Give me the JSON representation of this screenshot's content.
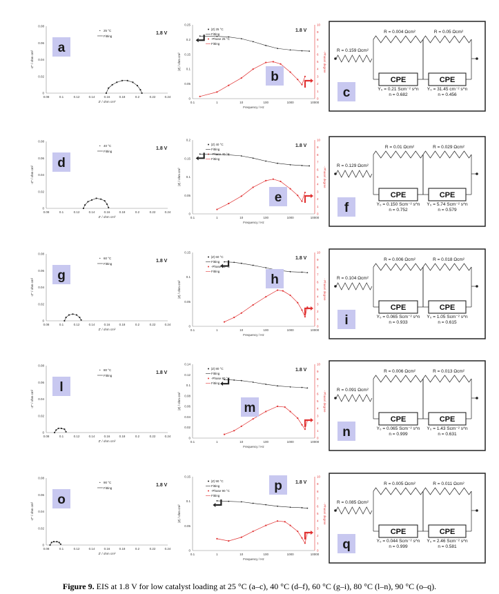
{
  "caption": {
    "label": "Figure 9.",
    "text": "EIS at 1.8 V for low catalyst loading at 25 °C (a–c), 40 °C (d–f), 60 °C (g–i), 80 °C (l–n), 90 °C (o–q)."
  },
  "common": {
    "voltage": "1.8 V",
    "fitting": "Fitting",
    "cpe": "CPE",
    "nyquist_xlabel": "Z' / ohm cm²",
    "nyquist_ylabel": "-Z'' / ohm cm²",
    "bode_xlabel": "Frequency / Hz",
    "bode_ylabel": "|Z| / ohm cm²",
    "bode_y2label": "- Phase/ degree",
    "bode_y2ticks": [
      "0",
      "1",
      "2",
      "3",
      "4",
      "5",
      "6",
      "7",
      "8",
      "9",
      "10"
    ],
    "bode_xticks": [
      "0.1",
      "1",
      "10",
      "100",
      "1000",
      "10000"
    ],
    "nyquist_xticks": [
      "0.08",
      "0.1",
      "0.12",
      "0.14",
      "0.16",
      "0.18",
      "0.2",
      "0.22",
      "0.24"
    ]
  },
  "chart_data": [
    {
      "type": "scatter",
      "role": "nyquist",
      "panel": "a",
      "xlabel": "Z' / ohm cm²",
      "ylabel": "-Z'' / ohm cm²",
      "xlim": [
        0.08,
        0.24
      ],
      "ylim": [
        0,
        0.08
      ],
      "yticks": [
        "0",
        "0.02",
        "0.04",
        "0.06",
        "0.08"
      ],
      "series": [
        {
          "name": "25 °C",
          "points": [
            [
              0.159,
              0
            ],
            [
              0.162,
              0.006
            ],
            [
              0.167,
              0.01
            ],
            [
              0.173,
              0.013
            ],
            [
              0.18,
              0.015
            ],
            [
              0.187,
              0.015
            ],
            [
              0.194,
              0.013
            ],
            [
              0.2,
              0.009
            ],
            [
              0.204,
              0.004
            ],
            [
              0.206,
              0.0
            ]
          ]
        },
        {
          "name": "Fitting",
          "line": true
        }
      ]
    },
    {
      "type": "line",
      "role": "bode",
      "panel": "b",
      "xlabel": "Frequency / Hz",
      "ylabel": "|Z| / ohm cm²",
      "y2label": "- Phase/ degree",
      "xlog": true,
      "xlim": [
        0.1,
        10000
      ],
      "ylim": [
        0,
        0.25
      ],
      "y2lim": [
        0,
        10
      ],
      "yticks": [
        "0",
        "0.05",
        "0.1",
        "0.15",
        "0.2",
        "0.25"
      ],
      "legend": [
        "|Z| 25 °C",
        "Fitting",
        "-Phase 25 °C",
        "Fitting"
      ],
      "magnitude": [
        [
          0.2,
          0.212
        ],
        [
          1,
          0.211
        ],
        [
          3,
          0.209
        ],
        [
          10,
          0.203
        ],
        [
          30,
          0.193
        ],
        [
          100,
          0.18
        ],
        [
          300,
          0.17
        ],
        [
          1000,
          0.165
        ],
        [
          3000,
          0.162
        ],
        [
          6000,
          0.161
        ]
      ],
      "phase": [
        [
          0.2,
          0.3
        ],
        [
          1,
          0.9
        ],
        [
          3,
          1.8
        ],
        [
          10,
          2.8
        ],
        [
          30,
          4.0
        ],
        [
          100,
          4.9
        ],
        [
          200,
          5.0
        ],
        [
          400,
          4.7
        ],
        [
          1000,
          3.6
        ],
        [
          2000,
          2.6
        ],
        [
          3000,
          1.9
        ],
        [
          4000,
          3.0
        ]
      ]
    },
    {
      "type": "table",
      "role": "circuit",
      "panel": "c",
      "R_series": "R = 0.159 Ωcm²",
      "R1": "R = 0.004 Ωcm²",
      "R2": "R = 0.05 Ωcm²",
      "Y1": "Y₀ = 0.21 Scm⁻² s^n",
      "n1": "n = 0.682",
      "Y2": "Y₀ = 31.45 cm⁻² s^n",
      "n2": "n = 0.456"
    },
    {
      "type": "scatter",
      "role": "nyquist",
      "panel": "d",
      "xlabel": "Z' / ohm cm²",
      "ylabel": "-Z'' / ohm cm²",
      "xlim": [
        0.08,
        0.24
      ],
      "ylim": [
        0,
        0.08
      ],
      "yticks": [
        "0",
        "0.02",
        "0.04",
        "0.06",
        "0.08"
      ],
      "series": [
        {
          "name": "40 °C",
          "points": [
            [
              0.129,
              0
            ],
            [
              0.131,
              0.004
            ],
            [
              0.135,
              0.008
            ],
            [
              0.14,
              0.01
            ],
            [
              0.146,
              0.012
            ],
            [
              0.152,
              0.011
            ],
            [
              0.157,
              0.009
            ],
            [
              0.16,
              0.005
            ],
            [
              0.162,
              0.001
            ]
          ]
        },
        {
          "name": "Fitting",
          "line": true
        }
      ]
    },
    {
      "type": "line",
      "role": "bode",
      "panel": "e",
      "xlabel": "Frequency / Hz",
      "ylabel": "|Z| / ohm cm²",
      "y2label": "- Phase/ degree",
      "xlog": true,
      "xlim": [
        0.1,
        10000
      ],
      "ylim": [
        0,
        0.2
      ],
      "y2lim": [
        0,
        10
      ],
      "yticks": [
        "0",
        "0.05",
        "0.1",
        "0.15",
        "0.2"
      ],
      "legend": [
        "|Z| 40 °C",
        "Fitting",
        "-Phase 40 °C",
        "Fitting"
      ],
      "magnitude": [
        [
          0.2,
          0.162
        ],
        [
          1,
          0.161
        ],
        [
          3,
          0.16
        ],
        [
          10,
          0.157
        ],
        [
          30,
          0.151
        ],
        [
          100,
          0.143
        ],
        [
          300,
          0.137
        ],
        [
          1000,
          0.133
        ],
        [
          3000,
          0.131
        ],
        [
          6000,
          0.13
        ]
      ],
      "phase": [
        [
          1,
          0.6
        ],
        [
          3,
          1.4
        ],
        [
          10,
          2.4
        ],
        [
          30,
          3.6
        ],
        [
          100,
          4.5
        ],
        [
          200,
          4.7
        ],
        [
          400,
          4.4
        ],
        [
          1000,
          3.4
        ],
        [
          2000,
          2.5
        ],
        [
          3000,
          1.7
        ],
        [
          4000,
          2.9
        ]
      ]
    },
    {
      "type": "table",
      "role": "circuit",
      "panel": "f",
      "R_series": "R = 0.129 Ωcm²",
      "R1": "R = 0.01 Ωcm²",
      "R2": "R = 0.029 Ωcm²",
      "Y1": "Y₀ = 0.150 Scm⁻² s^n",
      "n1": "n = 0.752",
      "Y2": "Y₀ = 5.74 Scm⁻² s^n",
      "n2": "n = 0.579"
    },
    {
      "type": "scatter",
      "role": "nyquist",
      "panel": "g",
      "xlabel": "Z' / ohm cm²",
      "ylabel": "-Z'' / ohm cm²",
      "xlim": [
        0.08,
        0.24
      ],
      "ylim": [
        0,
        0.08
      ],
      "yticks": [
        "0",
        "0.02",
        "0.04",
        "0.06",
        "0.08"
      ],
      "series": [
        {
          "name": "60 °C",
          "points": [
            [
              0.104,
              0
            ],
            [
              0.106,
              0.004
            ],
            [
              0.11,
              0.007
            ],
            [
              0.115,
              0.008
            ],
            [
              0.12,
              0.007
            ],
            [
              0.124,
              0.004
            ],
            [
              0.126,
              0.001
            ]
          ]
        },
        {
          "name": "Fitting",
          "line": true
        }
      ]
    },
    {
      "type": "line",
      "role": "bode",
      "panel": "h",
      "xlabel": "Frequency / Hz",
      "ylabel": "|Z| / ohm cm²",
      "y2label": "- Phase/ degree",
      "xlog": true,
      "xlim": [
        0.1,
        10000
      ],
      "ylim": [
        0,
        0.15
      ],
      "y2lim": [
        0,
        10
      ],
      "yticks": [
        "0",
        "0.05",
        "0.1",
        "0.15"
      ],
      "legend": [
        "|Z| 60 °C",
        "Fitting",
        "-Phase 60 °C",
        "Fitting"
      ],
      "magnitude": [
        [
          2,
          0.131
        ],
        [
          5,
          0.13
        ],
        [
          10,
          0.128
        ],
        [
          30,
          0.124
        ],
        [
          100,
          0.119
        ],
        [
          300,
          0.114
        ],
        [
          1000,
          0.111
        ],
        [
          3000,
          0.11
        ],
        [
          5000,
          0.109
        ]
      ],
      "phase": [
        [
          2,
          0.6
        ],
        [
          5,
          1.2
        ],
        [
          10,
          1.8
        ],
        [
          30,
          2.9
        ],
        [
          100,
          4.0
        ],
        [
          300,
          4.9
        ],
        [
          500,
          4.8
        ],
        [
          1000,
          4.2
        ],
        [
          2000,
          3.2
        ],
        [
          3000,
          2.2
        ],
        [
          4000,
          1.3
        ],
        [
          5000,
          2.6
        ]
      ]
    },
    {
      "type": "table",
      "role": "circuit",
      "panel": "i",
      "R_series": "R = 0.104 Ωcm²",
      "R1": "R = 0.006 Ωcm²",
      "R2": "R = 0.018 Ωcm²",
      "Y1": "Y₀ = 0.065 Scm⁻² s^n",
      "n1": "n = 0.933",
      "Y2": "Y₀ = 1.05 Scm⁻² s^n",
      "n2": "n = 0.615"
    },
    {
      "type": "scatter",
      "role": "nyquist",
      "panel": "l",
      "xlabel": "Z' / ohm cm²",
      "ylabel": "-Z'' / ohm cm²",
      "xlim": [
        0.08,
        0.24
      ],
      "ylim": [
        0,
        0.08
      ],
      "yticks": [
        "0",
        "0.02",
        "0.04",
        "0.06",
        "0.08"
      ],
      "series": [
        {
          "name": "80 °C",
          "points": [
            [
              0.091,
              0
            ],
            [
              0.093,
              0.003
            ],
            [
              0.096,
              0.005
            ],
            [
              0.1,
              0.005
            ],
            [
              0.104,
              0.004
            ],
            [
              0.106,
              0.001
            ]
          ]
        },
        {
          "name": "Fitting",
          "line": true
        }
      ]
    },
    {
      "type": "line",
      "role": "bode",
      "panel": "m",
      "xlabel": "Frequency / Hz",
      "ylabel": "|Z| / ohm cm²",
      "y2label": "- Phase/ degree",
      "xlog": true,
      "xlim": [
        0.1,
        10000
      ],
      "ylim": [
        0,
        0.14
      ],
      "y2lim": [
        0,
        10
      ],
      "yticks": [
        "0",
        "0.02",
        "0.04",
        "0.06",
        "0.08",
        "0.1",
        "0.12",
        "0.14"
      ],
      "legend": [
        "|Z| 80 °C",
        "Fitting",
        "-Phase 80 °C",
        "Fitting"
      ],
      "magnitude": [
        [
          2,
          0.111
        ],
        [
          5,
          0.11
        ],
        [
          10,
          0.109
        ],
        [
          30,
          0.106
        ],
        [
          100,
          0.102
        ],
        [
          300,
          0.099
        ],
        [
          1000,
          0.097
        ],
        [
          3000,
          0.096
        ],
        [
          5000,
          0.095
        ]
      ],
      "phase": [
        [
          2,
          0.5
        ],
        [
          5,
          1.0
        ],
        [
          10,
          1.6
        ],
        [
          30,
          2.6
        ],
        [
          100,
          3.6
        ],
        [
          300,
          4.3
        ],
        [
          600,
          4.2
        ],
        [
          1000,
          3.6
        ],
        [
          2000,
          2.7
        ],
        [
          3000,
          1.8
        ],
        [
          4000,
          1.2
        ],
        [
          5000,
          2.4
        ]
      ]
    },
    {
      "type": "table",
      "role": "circuit",
      "panel": "n",
      "R_series": "R = 0.091 Ωcm²",
      "R1": "R = 0.006 Ωcm²",
      "R2": "R = 0.013 Ωcm²",
      "Y1": "Y₀ = 0.065 Scm⁻² s^n",
      "n1": "n = 0.999",
      "Y2": "Y₀ = 1.43 Scm⁻² s^n",
      "n2": "n = 0.631"
    },
    {
      "type": "scatter",
      "role": "nyquist",
      "panel": "o",
      "xlabel": "Z' / ohm cm²",
      "ylabel": "-Z'' / ohm cm²",
      "xlim": [
        0.08,
        0.24
      ],
      "ylim": [
        0,
        0.08
      ],
      "yticks": [
        "0",
        "0.02",
        "0.04",
        "0.06",
        "0.08"
      ],
      "series": [
        {
          "name": "90 °C",
          "points": [
            [
              0.085,
              0
            ],
            [
              0.087,
              0.003
            ],
            [
              0.09,
              0.004
            ],
            [
              0.094,
              0.004
            ],
            [
              0.097,
              0.003
            ],
            [
              0.099,
              0.001
            ]
          ]
        },
        {
          "name": "Fitting",
          "line": true
        }
      ]
    },
    {
      "type": "line",
      "role": "bode",
      "panel": "p",
      "xlabel": "Frequency / Hz",
      "ylabel": "|Z| / ohm cm²",
      "y2label": "- Phase/ degree",
      "xlog": true,
      "xlim": [
        0.1,
        10000
      ],
      "ylim": [
        0,
        0.15
      ],
      "y2lim": [
        0,
        10
      ],
      "yticks": [
        "0",
        "0.05",
        "0.1",
        "0.15"
      ],
      "legend": [
        "|Z| 90 °C",
        "Fitting",
        "-Phase 90 °C",
        "Fitting"
      ],
      "magnitude": [
        [
          1,
          0.101
        ],
        [
          3,
          0.1
        ],
        [
          10,
          0.099
        ],
        [
          30,
          0.096
        ],
        [
          100,
          0.093
        ],
        [
          300,
          0.09
        ],
        [
          1000,
          0.088
        ],
        [
          3000,
          0.087
        ],
        [
          5000,
          0.086
        ]
      ],
      "phase": [
        [
          1,
          1.6
        ],
        [
          3,
          1.3
        ],
        [
          10,
          1.8
        ],
        [
          30,
          2.6
        ],
        [
          100,
          3.4
        ],
        [
          300,
          4.0
        ],
        [
          600,
          3.9
        ],
        [
          1000,
          3.4
        ],
        [
          2000,
          2.6
        ],
        [
          3000,
          1.7
        ],
        [
          4000,
          1.0
        ],
        [
          5000,
          2.4
        ]
      ]
    },
    {
      "type": "table",
      "role": "circuit",
      "panel": "q",
      "R_series": "R = 0.085 Ωcm²",
      "R1": "R = 0.005 Ωcm²",
      "R2": "R = 0.011 Ωcm²",
      "Y1": "Y₀ = 0.044 Scm⁻² s^n",
      "n1": "n = 0.999",
      "Y2": "Y₀ = 2.46 Scm⁻² s^n",
      "n2": "n = 0.581"
    }
  ]
}
